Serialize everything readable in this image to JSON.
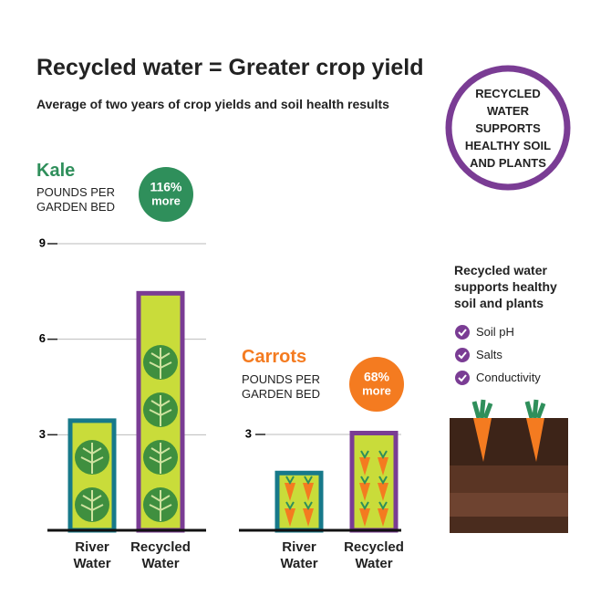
{
  "header": {
    "title": "Recycled water = Greater crop yield",
    "subtitle": "Average of two years of crop yields and soil health results"
  },
  "badge": "RECYCLED WATER SUPPORTS HEALTHY SOIL AND PLANTS",
  "panel": {
    "heading": "Recycled water supports healthy soil and plants",
    "items": [
      "Soil pH",
      "Salts",
      "Conductivity"
    ]
  },
  "chart_data": [
    {
      "type": "bar",
      "title": "Kale",
      "y_label": "POUNDS PER GARDEN BED",
      "color": "#2f8f5b",
      "annotation": "116%",
      "annotation_sub": "more",
      "categories": [
        "River Water",
        "Recycled Water"
      ],
      "values": [
        3.5,
        7.5
      ],
      "bar_colors": [
        "#17798a",
        "#7a3c94"
      ],
      "ylim": [
        0,
        9
      ],
      "yticks": [
        3,
        6,
        9
      ],
      "grid": true
    },
    {
      "type": "bar",
      "title": "Carrots",
      "y_label": "POUNDS PER GARDEN BED",
      "color": "#f47b20",
      "annotation": "68%",
      "annotation_sub": "more",
      "categories": [
        "River Water",
        "Recycled Water"
      ],
      "values": [
        1.85,
        3.1
      ],
      "bar_colors": [
        "#17798a",
        "#7a3c94"
      ],
      "ylim": [
        0,
        3
      ],
      "yticks": [
        3
      ],
      "grid": true
    }
  ]
}
